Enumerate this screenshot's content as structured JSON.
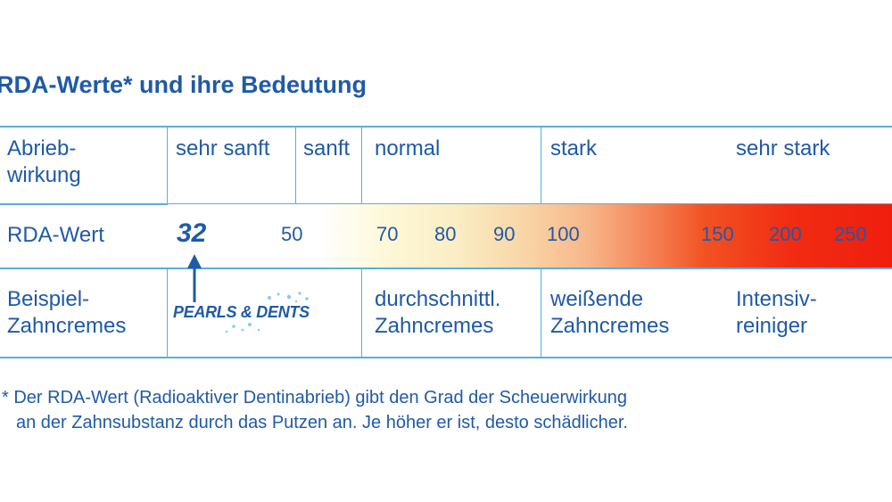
{
  "title": "RDA-Werte* und ihre Bedeutung",
  "rows": {
    "abrieb": {
      "header_line1": "Abrieb-",
      "header_line2": "wirkung",
      "levels": [
        "sehr sanft",
        "sanft",
        "normal",
        "stark",
        "sehr stark"
      ]
    },
    "rda": {
      "header": "RDA-Wert",
      "highlight_value": "32",
      "values": [
        "50",
        "70",
        "80",
        "90",
        "100",
        "150",
        "200",
        "250"
      ]
    },
    "beispiel": {
      "header_line1": "Beispiel-",
      "header_line2": "Zahncremes",
      "logo_text": "PEARLS & DENTS",
      "col_normal_line1": "durchschnittl.",
      "col_normal_line2": "Zahncremes",
      "col_stark_line1": "weißende",
      "col_stark_line2": "Zahncremes",
      "col_sehrstark_line1": "Intensiv-",
      "col_sehrstark_line2": "reiniger"
    }
  },
  "footnote": {
    "line1": "* Der RDA-Wert (Radioaktiver Dentinabrieb) gibt den Grad der Scheuerwirkung",
    "line2": "an der Zahnsubstanz durch das Putzen an. Je höher er ist, desto schädlicher."
  },
  "colors": {
    "text": "#1f5aa6",
    "rule": "#5aaede",
    "gradient_start": "#ffffff",
    "gradient_end": "#f01e0e"
  }
}
